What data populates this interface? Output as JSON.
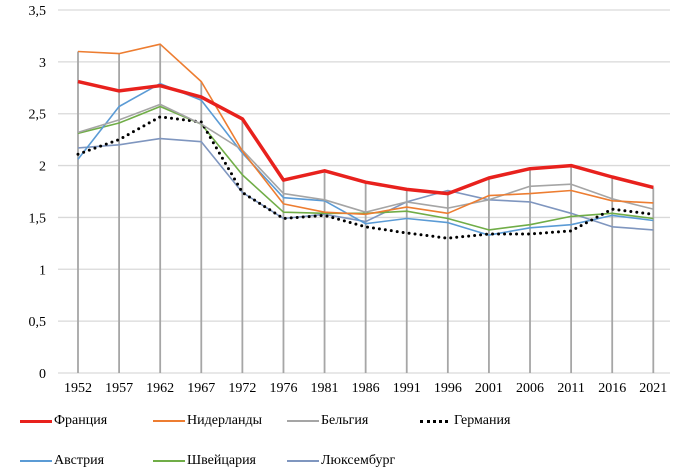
{
  "chart_data": {
    "type": "line",
    "title": "",
    "xlabel": "",
    "ylabel": "",
    "ylim": [
      0,
      3.5
    ],
    "yticks": [
      "0",
      "0,5",
      "1",
      "1,5",
      "2",
      "2,5",
      "3",
      "3,5"
    ],
    "ytick_values": [
      0,
      0.5,
      1,
      1.5,
      2,
      2.5,
      3,
      3.5
    ],
    "grid": true,
    "drop_lines": true,
    "legend_position": "bottom",
    "categories": [
      "1952",
      "1957",
      "1962",
      "1967",
      "1972",
      "1976",
      "1981",
      "1986",
      "1991",
      "1996",
      "2001",
      "2006",
      "2011",
      "2016",
      "2021"
    ],
    "series": [
      {
        "name": "Франция",
        "color": "#e8211d",
        "style": "thick",
        "values": [
          2.81,
          2.72,
          2.77,
          2.66,
          2.45,
          1.86,
          1.95,
          1.84,
          1.77,
          1.73,
          1.88,
          1.97,
          2.0,
          1.89,
          1.79
        ]
      },
      {
        "name": "Нидерланды",
        "color": "#ed7d31",
        "style": "solid",
        "values": [
          3.1,
          3.08,
          3.17,
          2.81,
          2.14,
          1.63,
          1.55,
          1.53,
          1.6,
          1.54,
          1.71,
          1.73,
          1.76,
          1.66,
          1.64
        ]
      },
      {
        "name": "Бельгия",
        "color": "#a5a5a5",
        "style": "solid",
        "values": [
          2.32,
          2.44,
          2.59,
          2.4,
          2.15,
          1.73,
          1.67,
          1.55,
          1.65,
          1.59,
          1.67,
          1.8,
          1.82,
          1.68,
          1.58
        ]
      },
      {
        "name": "Германия",
        "color": "#000000",
        "style": "dotted",
        "values": [
          2.11,
          2.25,
          2.47,
          2.42,
          1.74,
          1.49,
          1.52,
          1.41,
          1.35,
          1.3,
          1.34,
          1.34,
          1.37,
          1.58,
          1.53
        ]
      },
      {
        "name": "Австрия",
        "color": "#5b9bd5",
        "style": "solid",
        "values": [
          2.06,
          2.57,
          2.79,
          2.63,
          2.12,
          1.69,
          1.66,
          1.44,
          1.49,
          1.45,
          1.33,
          1.4,
          1.43,
          1.52,
          1.47
        ]
      },
      {
        "name": "Швейцария",
        "color": "#70ad47",
        "style": "solid",
        "values": [
          2.31,
          2.41,
          2.57,
          2.4,
          1.91,
          1.55,
          1.54,
          1.54,
          1.56,
          1.49,
          1.38,
          1.43,
          1.51,
          1.54,
          1.49
        ]
      },
      {
        "name": "Люксембург",
        "color": "#7f96bf",
        "style": "solid",
        "values": [
          2.17,
          2.2,
          2.26,
          2.23,
          1.74,
          1.49,
          1.53,
          1.46,
          1.65,
          1.76,
          1.67,
          1.65,
          1.54,
          1.41,
          1.38
        ]
      }
    ]
  }
}
